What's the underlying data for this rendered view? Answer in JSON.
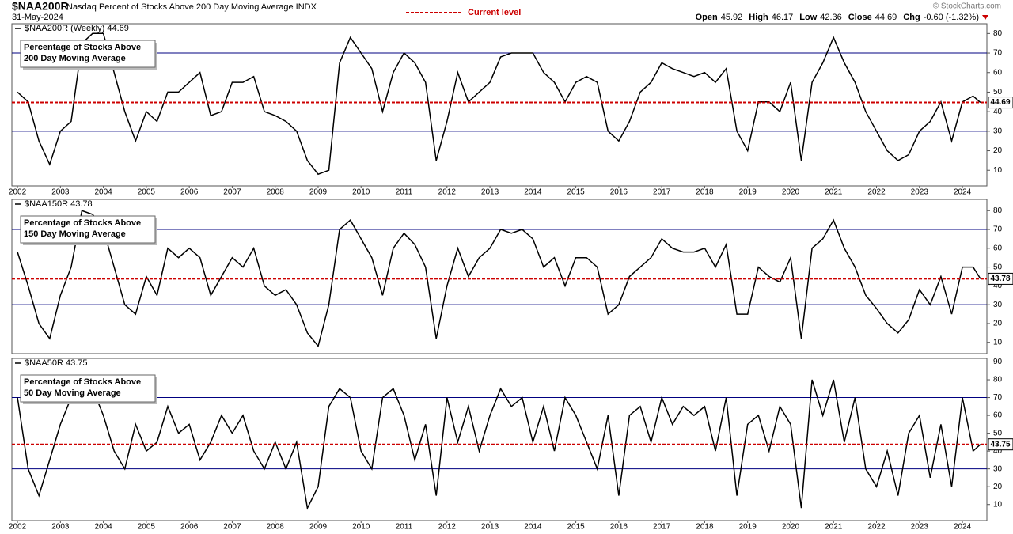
{
  "header": {
    "symbol": "$NAA200R",
    "description": "Nasdaq Percent of Stocks Above 200 Day Moving Average INDX",
    "date": "31-May-2024",
    "legend": {
      "name": "Current level",
      "color": "#cc0000"
    },
    "quote": [
      {
        "label": "Open",
        "value": 45.92
      },
      {
        "label": "High",
        "value": 46.17
      },
      {
        "label": "Low",
        "value": 42.36
      },
      {
        "label": "Close",
        "value": 44.69
      },
      {
        "label": "Chg",
        "value": "-0.60 (-1.32%)"
      }
    ],
    "credit": "© StockCharts.com"
  },
  "chart_data": [
    {
      "type": "line",
      "annotation": [
        "Percentage of Stocks Above",
        "200 Day Moving Average"
      ],
      "x": [
        2002,
        2002.25,
        2002.5,
        2002.75,
        2003,
        2003.25,
        2003.5,
        2003.75,
        2004,
        2004.25,
        2004.5,
        2004.75,
        2005,
        2005.25,
        2005.5,
        2005.75,
        2006,
        2006.25,
        2006.5,
        2006.75,
        2007,
        2007.25,
        2007.5,
        2007.75,
        2008,
        2008.25,
        2008.5,
        2008.75,
        2009,
        2009.25,
        2009.5,
        2009.75,
        2010,
        2010.25,
        2010.5,
        2010.75,
        2011,
        2011.25,
        2011.5,
        2011.75,
        2012,
        2012.25,
        2012.5,
        2012.75,
        2013,
        2013.25,
        2013.5,
        2013.75,
        2014,
        2014.25,
        2014.5,
        2014.75,
        2015,
        2015.25,
        2015.5,
        2015.75,
        2016,
        2016.25,
        2016.5,
        2016.75,
        2017,
        2017.25,
        2017.5,
        2017.75,
        2018,
        2018.25,
        2018.5,
        2018.75,
        2019,
        2019.25,
        2019.5,
        2019.75,
        2020,
        2020.25,
        2020.5,
        2020.75,
        2021,
        2021.25,
        2021.5,
        2021.75,
        2022,
        2022.25,
        2022.5,
        2022.75,
        2023,
        2023.25,
        2023.5,
        2023.75,
        2024,
        2024.25,
        2024.42
      ],
      "series": [
        {
          "name": "$NAA200R (Weekly) 44.69",
          "color": "#000000",
          "values": [
            50,
            45,
            25,
            13,
            30,
            35,
            75,
            80,
            80,
            60,
            40,
            25,
            40,
            35,
            50,
            50,
            55,
            60,
            38,
            40,
            55,
            55,
            58,
            40,
            38,
            35,
            30,
            15,
            8,
            10,
            65,
            78,
            70,
            62,
            40,
            60,
            70,
            65,
            55,
            15,
            35,
            60,
            45,
            50,
            55,
            68,
            70,
            70,
            70,
            60,
            55,
            45,
            55,
            58,
            55,
            30,
            25,
            35,
            50,
            55,
            65,
            62,
            60,
            58,
            60,
            55,
            62,
            30,
            20,
            45,
            45,
            40,
            55,
            15,
            55,
            65,
            78,
            65,
            55,
            40,
            30,
            20,
            15,
            18,
            30,
            35,
            45,
            25,
            45,
            48,
            44.69
          ]
        }
      ],
      "reference_lines": [
        {
          "value": 70,
          "color": "#000080"
        },
        {
          "value": 30,
          "color": "#000080"
        }
      ],
      "current_level": 44.69,
      "xlim": [
        2001.87,
        2024.57
      ],
      "ylim": [
        2,
        85
      ],
      "xticks": [
        2002,
        2003,
        2004,
        2005,
        2006,
        2007,
        2008,
        2009,
        2010,
        2011,
        2012,
        2013,
        2014,
        2015,
        2016,
        2017,
        2018,
        2019,
        2020,
        2021,
        2022,
        2023,
        2024
      ],
      "yticks": [
        10,
        20,
        30,
        40,
        50,
        60,
        70,
        80
      ]
    },
    {
      "type": "line",
      "annotation": [
        "Percentage of Stocks Above",
        "150 Day Moving Average"
      ],
      "x": [
        2002,
        2002.25,
        2002.5,
        2002.75,
        2003,
        2003.25,
        2003.5,
        2003.75,
        2004,
        2004.25,
        2004.5,
        2004.75,
        2005,
        2005.25,
        2005.5,
        2005.75,
        2006,
        2006.25,
        2006.5,
        2006.75,
        2007,
        2007.25,
        2007.5,
        2007.75,
        2008,
        2008.25,
        2008.5,
        2008.75,
        2009,
        2009.25,
        2009.5,
        2009.75,
        2010,
        2010.25,
        2010.5,
        2010.75,
        2011,
        2011.25,
        2011.5,
        2011.75,
        2012,
        2012.25,
        2012.5,
        2012.75,
        2013,
        2013.25,
        2013.5,
        2013.75,
        2014,
        2014.25,
        2014.5,
        2014.75,
        2015,
        2015.25,
        2015.5,
        2015.75,
        2016,
        2016.25,
        2016.5,
        2016.75,
        2017,
        2017.25,
        2017.5,
        2017.75,
        2018,
        2018.25,
        2018.5,
        2018.75,
        2019,
        2019.25,
        2019.5,
        2019.75,
        2020,
        2020.25,
        2020.5,
        2020.75,
        2021,
        2021.25,
        2021.5,
        2021.75,
        2022,
        2022.25,
        2022.5,
        2022.75,
        2023,
        2023.25,
        2023.5,
        2023.75,
        2024,
        2024.25,
        2024.42
      ],
      "series": [
        {
          "name": "$NAA150R 43.78",
          "color": "#000000",
          "values": [
            58,
            40,
            20,
            12,
            35,
            50,
            80,
            78,
            70,
            50,
            30,
            25,
            45,
            35,
            60,
            55,
            60,
            55,
            35,
            45,
            55,
            50,
            60,
            40,
            35,
            38,
            30,
            15,
            8,
            30,
            70,
            75,
            65,
            55,
            35,
            60,
            68,
            62,
            50,
            12,
            40,
            60,
            45,
            55,
            60,
            70,
            68,
            70,
            65,
            50,
            55,
            40,
            55,
            55,
            50,
            25,
            30,
            45,
            50,
            55,
            65,
            60,
            58,
            58,
            60,
            50,
            62,
            25,
            25,
            50,
            45,
            42,
            55,
            12,
            60,
            65,
            75,
            60,
            50,
            35,
            28,
            20,
            15,
            22,
            38,
            30,
            45,
            25,
            50,
            50,
            43.78
          ]
        }
      ],
      "reference_lines": [
        {
          "value": 70,
          "color": "#000080"
        },
        {
          "value": 30,
          "color": "#000080"
        }
      ],
      "current_level": 43.78,
      "xlim": [
        2001.87,
        2024.57
      ],
      "ylim": [
        4,
        86
      ],
      "yticks": [
        10,
        20,
        30,
        40,
        50,
        60,
        70,
        80
      ]
    },
    {
      "type": "line",
      "annotation": [
        "Percentage of Stocks Above",
        "50 Day Moving Average"
      ],
      "x": [
        2002,
        2002.25,
        2002.5,
        2002.75,
        2003,
        2003.25,
        2003.5,
        2003.75,
        2004,
        2004.25,
        2004.5,
        2004.75,
        2005,
        2005.25,
        2005.5,
        2005.75,
        2006,
        2006.25,
        2006.5,
        2006.75,
        2007,
        2007.25,
        2007.5,
        2007.75,
        2008,
        2008.25,
        2008.5,
        2008.75,
        2009,
        2009.25,
        2009.5,
        2009.75,
        2010,
        2010.25,
        2010.5,
        2010.75,
        2011,
        2011.25,
        2011.5,
        2011.75,
        2012,
        2012.25,
        2012.5,
        2012.75,
        2013,
        2013.25,
        2013.5,
        2013.75,
        2014,
        2014.25,
        2014.5,
        2014.75,
        2015,
        2015.25,
        2015.5,
        2015.75,
        2016,
        2016.25,
        2016.5,
        2016.75,
        2017,
        2017.25,
        2017.5,
        2017.75,
        2018,
        2018.25,
        2018.5,
        2018.75,
        2019,
        2019.25,
        2019.5,
        2019.75,
        2020,
        2020.25,
        2020.5,
        2020.75,
        2021,
        2021.25,
        2021.5,
        2021.75,
        2022,
        2022.25,
        2022.5,
        2022.75,
        2023,
        2023.25,
        2023.5,
        2023.75,
        2024,
        2024.25,
        2024.42
      ],
      "series": [
        {
          "name": "$NAA50R 43.75",
          "color": "#000000",
          "values": [
            70,
            30,
            15,
            35,
            55,
            70,
            80,
            75,
            60,
            40,
            30,
            55,
            40,
            45,
            65,
            50,
            55,
            35,
            45,
            60,
            50,
            60,
            40,
            30,
            45,
            30,
            45,
            8,
            20,
            65,
            75,
            70,
            40,
            30,
            70,
            75,
            60,
            35,
            55,
            15,
            70,
            45,
            65,
            40,
            60,
            75,
            65,
            70,
            45,
            65,
            40,
            70,
            60,
            45,
            30,
            60,
            15,
            60,
            65,
            45,
            70,
            55,
            65,
            60,
            65,
            40,
            70,
            15,
            55,
            60,
            40,
            65,
            55,
            8,
            80,
            60,
            80,
            45,
            70,
            30,
            20,
            40,
            15,
            50,
            60,
            25,
            55,
            20,
            70,
            40,
            43.75
          ]
        }
      ],
      "reference_lines": [
        {
          "value": 70,
          "color": "#000080"
        },
        {
          "value": 30,
          "color": "#000080"
        }
      ],
      "current_level": 43.75,
      "xlim": [
        2001.87,
        2024.57
      ],
      "ylim": [
        1,
        92
      ],
      "xticks": [
        2002,
        2003,
        2004,
        2005,
        2006,
        2007,
        2008,
        2009,
        2010,
        2011,
        2012,
        2013,
        2014,
        2015,
        2016,
        2017,
        2018,
        2019,
        2020,
        2021,
        2022,
        2023,
        2024
      ],
      "yticks": [
        10,
        20,
        30,
        40,
        50,
        60,
        70,
        80,
        90
      ]
    }
  ]
}
